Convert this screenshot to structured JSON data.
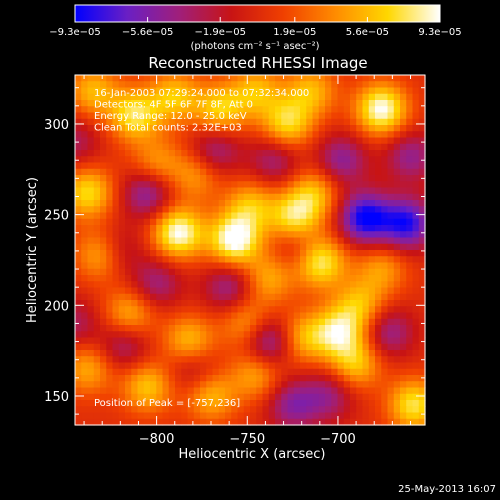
{
  "chart_data": {
    "type": "heatmap",
    "title": "Reconstructed RHESSI Image",
    "xlabel": "Heliocentric X (arcsec)",
    "ylabel": "Heliocentric Y (arcsec)",
    "xlim": [
      -845,
      -652
    ],
    "ylim": [
      134,
      327
    ],
    "x_ticks": [
      -800,
      -750,
      -700
    ],
    "x_tick_labels": [
      "−800",
      "−750",
      "−700"
    ],
    "y_ticks": [
      150,
      200,
      250,
      300
    ],
    "y_tick_labels": [
      "150",
      "200",
      "250",
      "300"
    ],
    "colorbar": {
      "range": [
        -9.3e-05,
        9.3e-05
      ],
      "tick_values": [
        -9.3e-05,
        -5.6e-05,
        -1.9e-05,
        1.9e-05,
        5.6e-05,
        9.3e-05
      ],
      "tick_labels": [
        "−9.3e−05",
        "−5.6e−05",
        "−1.9e−05",
        "1.9e−05",
        "5.6e−05",
        "9.3e−05"
      ],
      "unit_label": "(photons cm⁻² s⁻¹ asec⁻²)",
      "colors": [
        "#0000ff",
        "#6a1fc4",
        "#a01f7a",
        "#c81414",
        "#f04000",
        "#ff8c00",
        "#ffd700",
        "#ffffff"
      ]
    },
    "annotations": [
      "16-Jan-2003 07:29:24.000 to 07:32:34.000",
      "Detectors: 4F 5F 6F 7F 8F, Att 0",
      "Energy Range: 12.0 - 25.0 keV",
      "Clean    Total counts: 2.32E+03"
    ],
    "peak_label": "Position of Peak = [-757,236]",
    "peak": [
      -757,
      236
    ],
    "sources": [
      {
        "x": -835,
        "y": 318,
        "amp": 0.55
      },
      {
        "x": -812,
        "y": 305,
        "amp": 0.75
      },
      {
        "x": -790,
        "y": 315,
        "amp": 0.6
      },
      {
        "x": -765,
        "y": 308,
        "amp": 0.65
      },
      {
        "x": -745,
        "y": 318,
        "amp": 0.55
      },
      {
        "x": -728,
        "y": 300,
        "amp": 0.7
      },
      {
        "x": -715,
        "y": 318,
        "amp": 0.55
      },
      {
        "x": -676,
        "y": 308,
        "amp": 0.95
      },
      {
        "x": -838,
        "y": 262,
        "amp": 0.7
      },
      {
        "x": -830,
        "y": 228,
        "amp": 0.65
      },
      {
        "x": -788,
        "y": 240,
        "amp": 0.95
      },
      {
        "x": -778,
        "y": 272,
        "amp": 0.45
      },
      {
        "x": -757,
        "y": 236,
        "amp": 1.0
      },
      {
        "x": -748,
        "y": 255,
        "amp": 0.55
      },
      {
        "x": -724,
        "y": 248,
        "amp": 0.75
      },
      {
        "x": -713,
        "y": 262,
        "amp": 0.55
      },
      {
        "x": -710,
        "y": 224,
        "amp": 0.85
      },
      {
        "x": -738,
        "y": 215,
        "amp": 0.5
      },
      {
        "x": -782,
        "y": 180,
        "amp": 0.6
      },
      {
        "x": -815,
        "y": 195,
        "amp": 0.55
      },
      {
        "x": -750,
        "y": 190,
        "amp": 0.5
      },
      {
        "x": -720,
        "y": 182,
        "amp": 0.55
      },
      {
        "x": -688,
        "y": 200,
        "amp": 0.55
      },
      {
        "x": -700,
        "y": 185,
        "amp": 0.75
      },
      {
        "x": -690,
        "y": 168,
        "amp": 0.6
      },
      {
        "x": -676,
        "y": 220,
        "amp": 0.45
      },
      {
        "x": -838,
        "y": 165,
        "amp": 0.5
      },
      {
        "x": -805,
        "y": 155,
        "amp": 0.6
      },
      {
        "x": -770,
        "y": 150,
        "amp": 0.55
      },
      {
        "x": -745,
        "y": 162,
        "amp": 0.5
      },
      {
        "x": -658,
        "y": 145,
        "amp": 0.75
      },
      {
        "x": -800,
        "y": 278,
        "amp": 0.45
      },
      {
        "x": -685,
        "y": 248,
        "amp": -1.0
      },
      {
        "x": -662,
        "y": 245,
        "amp": -0.9
      },
      {
        "x": -660,
        "y": 282,
        "amp": -0.5
      },
      {
        "x": -738,
        "y": 180,
        "amp": -0.7
      },
      {
        "x": -698,
        "y": 280,
        "amp": -0.55
      },
      {
        "x": -805,
        "y": 262,
        "amp": -0.6
      },
      {
        "x": -822,
        "y": 230,
        "amp": -0.45
      },
      {
        "x": -768,
        "y": 285,
        "amp": -0.5
      },
      {
        "x": -760,
        "y": 210,
        "amp": -0.5
      },
      {
        "x": -800,
        "y": 212,
        "amp": -0.45
      },
      {
        "x": -818,
        "y": 178,
        "amp": -0.45
      },
      {
        "x": -725,
        "y": 145,
        "amp": -0.55
      },
      {
        "x": -705,
        "y": 150,
        "amp": -0.45
      },
      {
        "x": -735,
        "y": 280,
        "amp": -0.45
      },
      {
        "x": -672,
        "y": 185,
        "amp": -0.5
      },
      {
        "x": -845,
        "y": 290,
        "amp": -0.35
      },
      {
        "x": -845,
        "y": 190,
        "amp": -0.35
      },
      {
        "x": -780,
        "y": 165,
        "amp": -0.35
      },
      {
        "x": -722,
        "y": 232,
        "amp": -0.35
      }
    ]
  },
  "footer": {
    "timestamp": "25-May-2013 16:07"
  }
}
